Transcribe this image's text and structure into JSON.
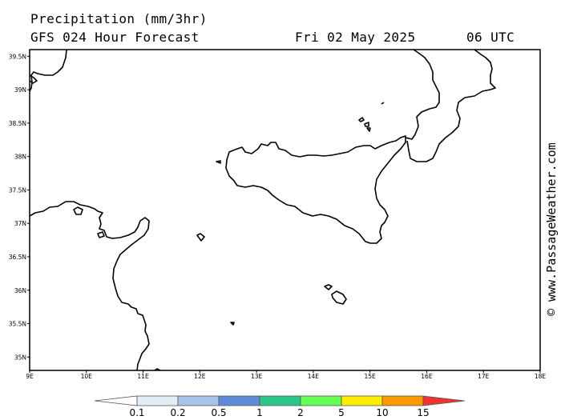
{
  "header": {
    "title": "Precipitation (mm/3hr)",
    "model": "GFS 024 Hour Forecast",
    "date": "Fri 02 May 2025",
    "time": "06 UTC"
  },
  "credit": "© www.PassageWeather.com",
  "map": {
    "lon_range": [
      9,
      18
    ],
    "lat_range": [
      34.8,
      39.6
    ],
    "lat_ticks": [
      "35N",
      "35.5N",
      "36N",
      "36.5N",
      "37N",
      "37.5N",
      "38N",
      "38.5N",
      "39N",
      "39.5N"
    ],
    "lon_ticks": [
      "9E",
      "10E",
      "11E",
      "12E",
      "13E",
      "14E",
      "15E",
      "16E",
      "17E",
      "18E"
    ],
    "coastline_color": "#000000",
    "precipitation_shown": false
  },
  "legend": {
    "labels": [
      "0.1",
      "0.2",
      "0.5",
      "1",
      "2",
      "5",
      "10",
      "15"
    ],
    "colors": [
      "#ffffff",
      "#e4ecf8",
      "#a8c4e8",
      "#5f8bd9",
      "#2ec58c",
      "#66ff55",
      "#ffee00",
      "#ff9900",
      "#ee3333"
    ]
  }
}
